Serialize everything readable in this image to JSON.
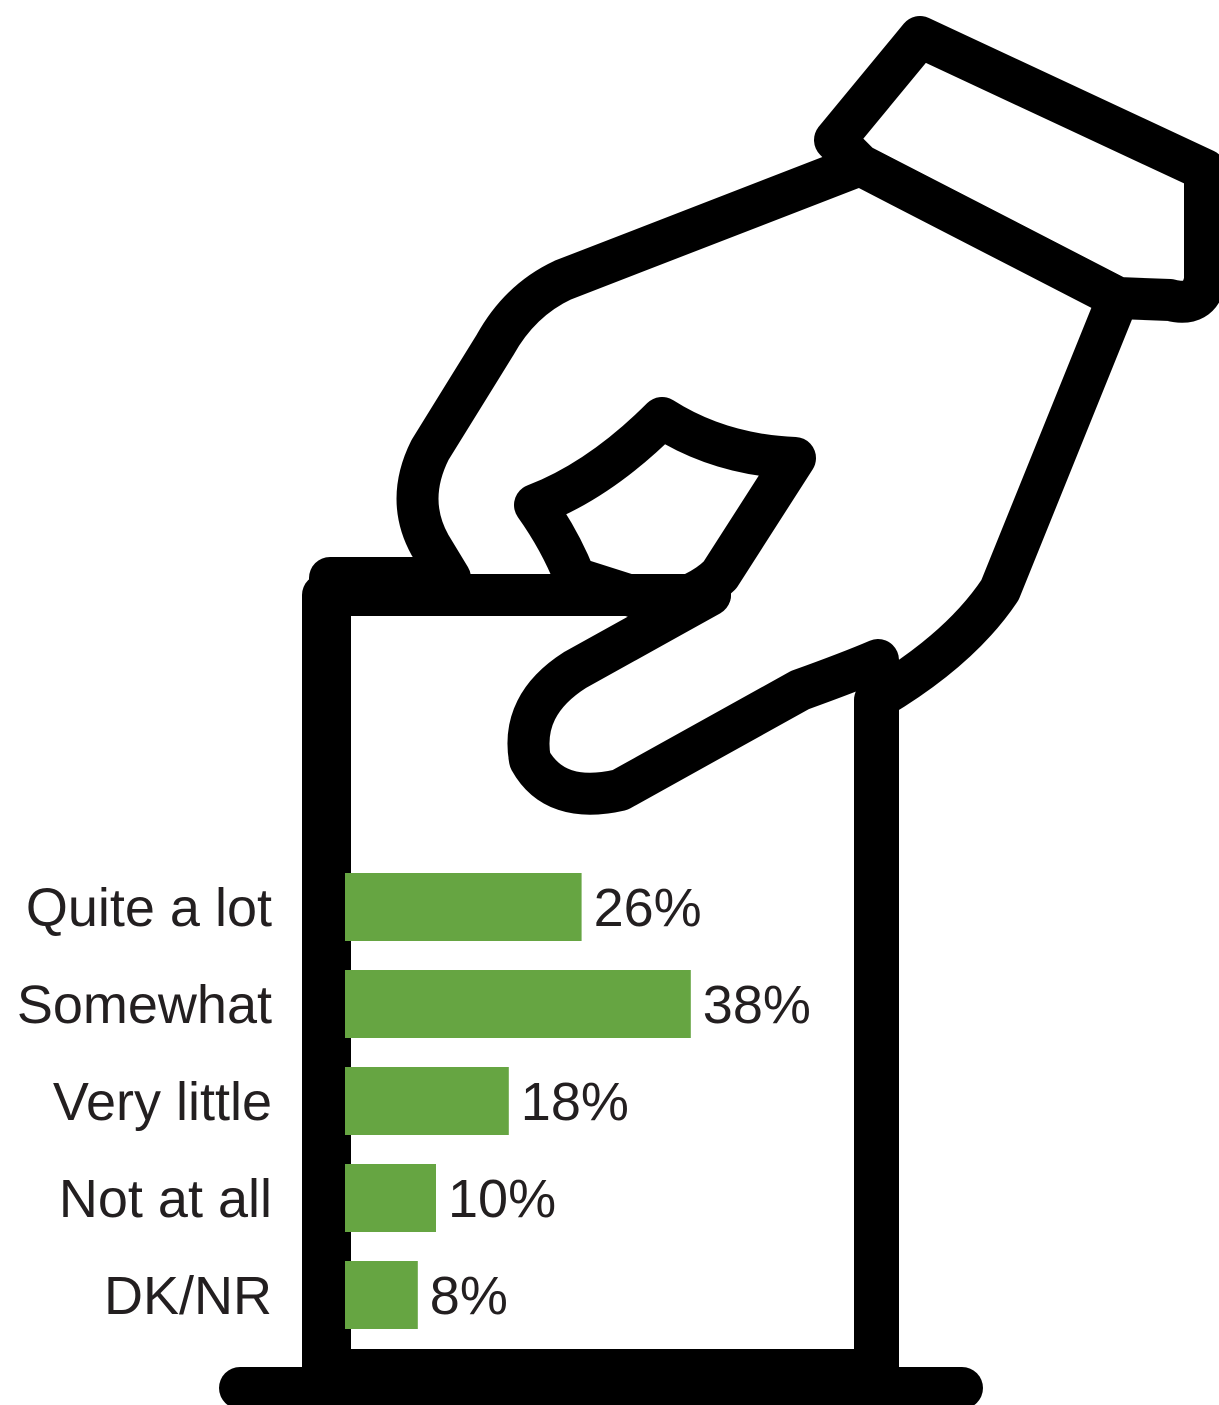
{
  "chart_data": {
    "type": "bar",
    "orientation": "horizontal",
    "categories": [
      "Quite a lot",
      "Somewhat",
      "Very little",
      "Not at all",
      "DK/NR"
    ],
    "values": [
      26,
      38,
      18,
      10,
      8
    ],
    "value_labels": [
      "26%",
      "38%",
      "18%",
      "10%",
      "8%"
    ],
    "unit": "%",
    "bar_color": "#66a542",
    "grid": false,
    "legend": "none",
    "xlim": [
      0,
      38
    ]
  },
  "illustration": {
    "icon": "hand-casting-ballot-icon",
    "stroke_color": "#000000",
    "fill_color": "#ffffff"
  }
}
